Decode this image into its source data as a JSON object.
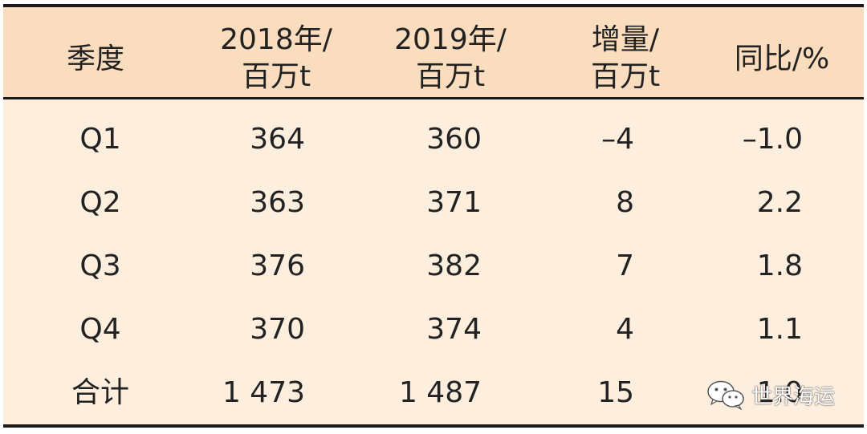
{
  "table": {
    "headers": [
      {
        "line1": "季度",
        "line2": ""
      },
      {
        "line1": "2018年/",
        "line2": "百万t"
      },
      {
        "line1": "2019年/",
        "line2": "百万t"
      },
      {
        "line1": "增量/",
        "line2": "百万t"
      },
      {
        "line1": "同比/%",
        "line2": ""
      }
    ],
    "rows": [
      [
        "Q1",
        "364",
        "360",
        "–4",
        "–1.0"
      ],
      [
        "Q2",
        "363",
        "371",
        "8",
        "2.2"
      ],
      [
        "Q3",
        "376",
        "382",
        "7",
        "1.8"
      ],
      [
        "Q4",
        "370",
        "374",
        "4",
        "1.1"
      ],
      [
        "合计",
        "1 473",
        "1 487",
        "15",
        "1.0"
      ]
    ]
  },
  "watermark": {
    "text": "世界海运",
    "icon": "wechat-icon"
  },
  "colors": {
    "header_bg": "#fadcbf",
    "body_bg": "#fdeede",
    "rule": "#1a1a1a"
  }
}
